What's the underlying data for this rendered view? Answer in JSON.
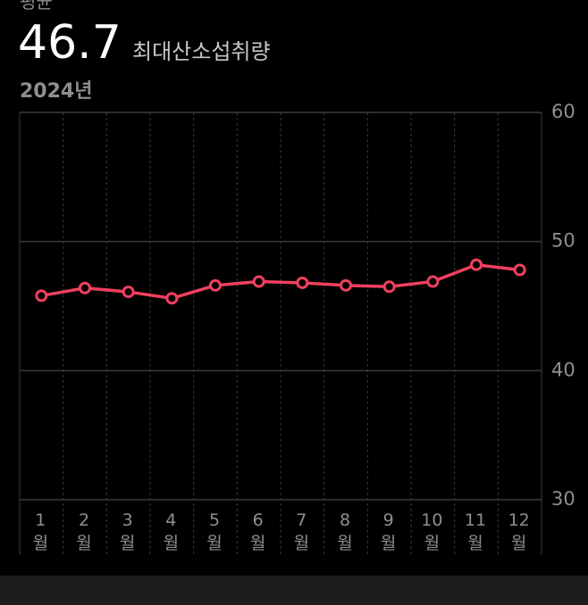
{
  "header": {
    "label": "평균",
    "value": "46.7",
    "unit": "최대산소섭취량",
    "period": "2024년"
  },
  "chart_data": {
    "type": "line",
    "categories": [
      "1월",
      "2월",
      "3월",
      "4월",
      "5월",
      "6월",
      "7월",
      "8월",
      "9월",
      "10월",
      "11월",
      "12월"
    ],
    "values": [
      45.8,
      46.4,
      46.1,
      45.6,
      46.6,
      46.9,
      46.8,
      46.6,
      46.5,
      46.9,
      48.2,
      47.8
    ],
    "color": "#f0405f",
    "ylim": [
      30,
      60
    ],
    "yticks": [
      30,
      40,
      50,
      60
    ],
    "grid": true
  }
}
